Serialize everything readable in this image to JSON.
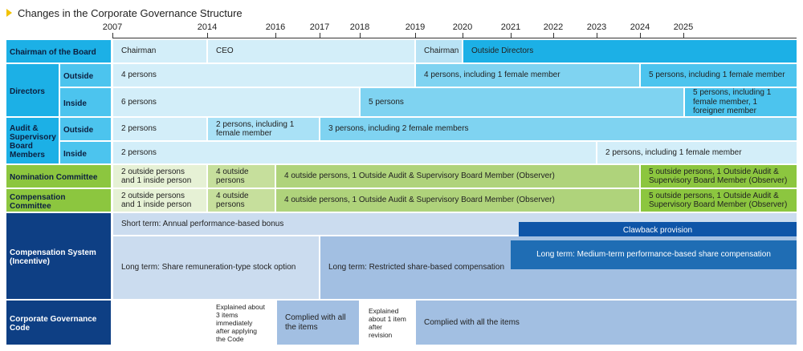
{
  "title": "Changes in the Corporate Governance Structure",
  "years": [
    "2007",
    "2014",
    "2016",
    "2017",
    "2018",
    "2019",
    "2020",
    "2021",
    "2022",
    "2023",
    "2024",
    "2025"
  ],
  "headers": {
    "chairman": "Chairman of the Board",
    "directors": "Directors",
    "directors_outside": "Outside",
    "directors_inside": "Inside",
    "audit": "Audit & Supervisory Board Members",
    "audit_outside": "Outside",
    "audit_inside": "Inside",
    "nomination": "Nomination Committee",
    "compensation_committee": "Compensation Committee",
    "compensation_system": "Compensation System (Incentive)",
    "cg_code": "Corporate Governance Code"
  },
  "chairman": [
    "Chairman",
    "CEO",
    "Chairman",
    "Outside Directors"
  ],
  "directors_outside": [
    "4 persons",
    "4 persons, including 1 female member",
    "5 persons, including 1 female member"
  ],
  "directors_inside": [
    "6 persons",
    "5 persons",
    "5 persons, including 1 female member, 1 foreigner member"
  ],
  "audit_outside": [
    "2 persons",
    "2 persons, including 1 female member",
    "3 persons, including 2 female members"
  ],
  "audit_inside": [
    "2 persons",
    "2 persons, including 1 female member"
  ],
  "nomination": [
    "2 outside persons and 1 inside person",
    "4 outside persons",
    "4 outside persons, 1 Outside Audit & Supervisory Board Member (Observer)",
    "5 outside persons, 1 Outside Audit & Supervisory Board Member (Observer)"
  ],
  "compensation_committee": [
    "2 outside persons and 1 inside person",
    "4 outside persons",
    "4 outside persons, 1 Outside Audit & Supervisory Board Member (Observer)",
    "5 outside persons, 1 Outside Audit & Supervisory Board Member (Observer)"
  ],
  "compensation_system": {
    "short_term": "Short term: Annual performance-based bonus",
    "clawback": "Clawback provision",
    "long_stock": "Long term: Share remuneration-type stock option",
    "long_restricted": "Long term: Restricted share-based compensation",
    "long_medium": "Long term: Medium-term performance-based share compensation"
  },
  "cg_code": [
    "Explained about 3 items immediately after applying the Code",
    "Complied with all the items",
    "Explained about 1 item after revision",
    "Complied with all the items"
  ],
  "colors": {
    "dark_blue": "#0e3f84",
    "cyan": "#1cb0e6",
    "light_cyan": "#d3eef9",
    "mid_cyan": "#7fd3f1",
    "green": "#8cc63f",
    "light_green": "#e6f1d5",
    "mid_green": "#c6df9c",
    "steel_blue": "#1f6db4",
    "light_steel": "#cbdcef",
    "mid_steel": "#a2bfe2"
  }
}
